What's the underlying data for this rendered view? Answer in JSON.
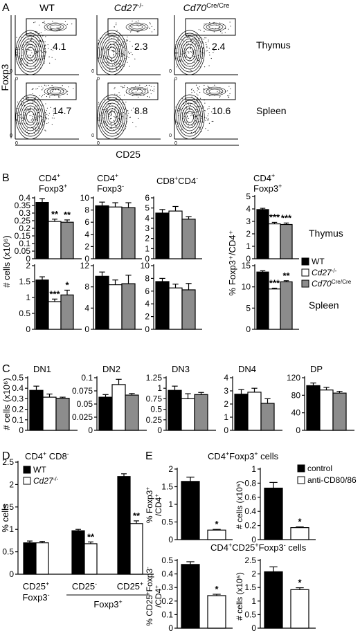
{
  "colors": {
    "wt": "#000000",
    "ko": "#ffffff",
    "cd70": "#8c8c8c",
    "axis": "#000000"
  },
  "panels": {
    "A": "A",
    "B": "B",
    "C": "C",
    "D": "D",
    "E": "E"
  },
  "flow": {
    "columns": [
      {
        "plain": "WT",
        "italic": "",
        "sup": ""
      },
      {
        "plain": "",
        "italic": "Cd27",
        "sup": "-/-"
      },
      {
        "plain": "",
        "italic": "Cd70",
        "sup": "Cre/Cre"
      }
    ],
    "rows": [
      "Thymus",
      "Spleen"
    ],
    "values": [
      [
        "4.1",
        "2.3",
        "2.4"
      ],
      [
        "14.7",
        "8.8",
        "10.6"
      ]
    ],
    "ylabel": "Foxp3",
    "xlabel": "CD25",
    "tick_zero": "0"
  },
  "legend_b": [
    {
      "text": "WT",
      "italic": false,
      "sup": "",
      "color": "#000000"
    },
    {
      "text": "Cd27",
      "italic": true,
      "sup": "-/-",
      "color": "#ffffff"
    },
    {
      "text": "Cd70",
      "italic": true,
      "sup": "Cre/Cre",
      "color": "#8c8c8c"
    }
  ],
  "legend_d": [
    {
      "text": "WT",
      "italic": false,
      "sup": "",
      "color": "#000000"
    },
    {
      "text": "Cd27",
      "italic": true,
      "sup": "-/-",
      "color": "#ffffff"
    }
  ],
  "legend_e": [
    {
      "text": "control",
      "italic": false,
      "sup": "",
      "color": "#000000"
    },
    {
      "text": "anti-CD80/86",
      "italic": false,
      "sup": "",
      "color": "#ffffff"
    }
  ],
  "b_labels": {
    "tregs": [
      "CD4+",
      "Foxp3+"
    ],
    "conv": [
      "CD4+",
      "Foxp3-"
    ],
    "cd8": "CD8+CD4-",
    "pct": [
      "CD4+",
      "Foxp3+"
    ],
    "ylabel_left": "# cells (x10⁶)",
    "ylabel_right": "% Foxp3⁺/CD4⁺",
    "thymus": "Thymus",
    "spleen": "Spleen"
  },
  "c_labels": {
    "ylabel": "# cells (x10⁶)"
  },
  "d_labels": {
    "title": "CD4+ CD8-",
    "ylabel": "% cells",
    "groups": [
      [
        "CD25+",
        "Foxp3-"
      ],
      [
        "CD25-",
        ""
      ],
      [
        "CD25+",
        ""
      ]
    ],
    "bracket": "Foxp3+"
  },
  "e_labels": {
    "title_top": "CD4+Foxp3+ cells",
    "title_bottom": "CD4+CD25+Foxp3- cells",
    "ylabel_1": [
      "% Foxp3+",
      "/CD4+"
    ],
    "ylabel_2": "# cells (x10⁵)",
    "ylabel_3": [
      "% CD25+Foxp3-",
      "/CD4+"
    ],
    "ylabel_4": "# cells (x10⁵)"
  },
  "chart_data": [
    {
      "id": "B-thymus-tregs",
      "type": "bar",
      "ylim": [
        0,
        0.4
      ],
      "ticks": [
        "0",
        "0.05",
        "0.1",
        "0.15",
        "0.2",
        "0.25",
        "0.3",
        "0.35",
        "0.4"
      ],
      "tickvals": [
        0,
        0.05,
        0.1,
        0.15,
        0.2,
        0.25,
        0.3,
        0.35,
        0.4
      ],
      "values": [
        0.37,
        0.245,
        0.24
      ],
      "errors": [
        0.025,
        0.015,
        0.015
      ],
      "sig": [
        "",
        "**",
        "**"
      ]
    },
    {
      "id": "B-thymus-conv",
      "type": "bar",
      "ylim": [
        0,
        10
      ],
      "ticks": [
        "0",
        "2",
        "4",
        "6",
        "8",
        "10"
      ],
      "tickvals": [
        0,
        2,
        4,
        6,
        8,
        10
      ],
      "values": [
        8.7,
        8.5,
        8.4
      ],
      "errors": [
        0.6,
        0.7,
        0.8
      ],
      "sig": [
        "",
        "",
        ""
      ]
    },
    {
      "id": "B-thymus-cd8",
      "type": "bar",
      "ylim": [
        0,
        6
      ],
      "ticks": [
        "0",
        "1",
        "2",
        "3",
        "4",
        "5",
        "6"
      ],
      "tickvals": [
        0,
        1,
        2,
        3,
        4,
        5,
        6
      ],
      "values": [
        4.5,
        4.7,
        3.9
      ],
      "errors": [
        0.35,
        0.45,
        0.25
      ],
      "sig": [
        "",
        "",
        ""
      ]
    },
    {
      "id": "B-thymus-pct",
      "type": "bar",
      "ylim": [
        0,
        5
      ],
      "ticks": [
        "0",
        "1",
        "2",
        "3",
        "4",
        "5"
      ],
      "tickvals": [
        0,
        1,
        2,
        3,
        4,
        5
      ],
      "values": [
        3.95,
        2.8,
        2.75
      ],
      "errors": [
        0.1,
        0.12,
        0.12
      ],
      "sig": [
        "",
        "***",
        "***"
      ]
    },
    {
      "id": "B-spleen-tregs",
      "type": "bar",
      "ylim": [
        0,
        2
      ],
      "ticks": [
        "0",
        "0.5",
        "1",
        "1.5",
        "2"
      ],
      "tickvals": [
        0,
        0.5,
        1,
        1.5,
        2
      ],
      "values": [
        1.55,
        0.87,
        1.08
      ],
      "errors": [
        0.1,
        0.08,
        0.15
      ],
      "sig": [
        "",
        "***",
        "*"
      ]
    },
    {
      "id": "B-spleen-conv",
      "type": "bar",
      "ylim": [
        0,
        12
      ],
      "ticks": [
        "0",
        "4",
        "8",
        "12"
      ],
      "tickvals": [
        0,
        4,
        8,
        12
      ],
      "values": [
        10.0,
        8.4,
        8.6
      ],
      "errors": [
        0.8,
        0.9,
        1.6
      ],
      "sig": [
        "",
        "",
        ""
      ]
    },
    {
      "id": "B-spleen-cd8",
      "type": "bar",
      "ylim": [
        0,
        10
      ],
      "ticks": [
        "0",
        "2",
        "4",
        "6",
        "8",
        "10"
      ],
      "tickvals": [
        0,
        2,
        4,
        6,
        8,
        10
      ],
      "values": [
        7.5,
        6.5,
        6.2
      ],
      "errors": [
        0.5,
        0.6,
        1.0
      ],
      "sig": [
        "",
        "",
        ""
      ]
    },
    {
      "id": "B-spleen-pct",
      "type": "bar",
      "ylim": [
        0,
        15
      ],
      "ticks": [
        "0",
        "5",
        "10",
        "15"
      ],
      "tickvals": [
        0,
        5,
        10,
        15
      ],
      "values": [
        13.5,
        9.5,
        11.2
      ],
      "errors": [
        0.3,
        0.2,
        0.25
      ],
      "sig": [
        "",
        "***",
        "**"
      ]
    },
    {
      "id": "C-DN1",
      "type": "bar",
      "title": "DN1",
      "ylim": [
        0,
        0.5
      ],
      "ticks": [
        "0",
        "0.1",
        "0.2",
        "0.3",
        "0.4",
        "0.5"
      ],
      "tickvals": [
        0,
        0.1,
        0.2,
        0.3,
        0.4,
        0.5
      ],
      "values": [
        0.38,
        0.315,
        0.305
      ],
      "errors": [
        0.04,
        0.03,
        0.01
      ],
      "sig": [
        "",
        "",
        ""
      ]
    },
    {
      "id": "C-DN2",
      "type": "bar",
      "title": "DN2",
      "ylim": [
        0,
        0.1
      ],
      "ticks": [
        "0",
        "0.025",
        "0.05",
        "0.075",
        "0.1"
      ],
      "tickvals": [
        0,
        0.025,
        0.05,
        0.075,
        0.1
      ],
      "values": [
        0.063,
        0.087,
        0.067
      ],
      "errors": [
        0.005,
        0.01,
        0.003
      ],
      "sig": [
        "",
        "",
        ""
      ]
    },
    {
      "id": "C-DN3",
      "type": "bar",
      "title": "DN3",
      "ylim": [
        0,
        1.25
      ],
      "ticks": [
        "0",
        "0.25",
        "0.5",
        "0.75",
        "1",
        "1.25"
      ],
      "tickvals": [
        0,
        0.25,
        0.5,
        0.75,
        1,
        1.25
      ],
      "values": [
        0.95,
        0.75,
        0.85
      ],
      "errors": [
        0.1,
        0.12,
        0.05
      ],
      "sig": [
        "",
        "",
        ""
      ]
    },
    {
      "id": "C-DN4",
      "type": "bar",
      "title": "DN4",
      "ylim": [
        0,
        4
      ],
      "ticks": [
        "0",
        "1",
        "2",
        "3",
        "4"
      ],
      "tickvals": [
        0,
        1,
        2,
        3,
        4
      ],
      "values": [
        2.75,
        2.9,
        2.05
      ],
      "errors": [
        0.35,
        0.3,
        0.35
      ],
      "sig": [
        "",
        "",
        ""
      ]
    },
    {
      "id": "C-DP",
      "type": "bar",
      "title": "DP",
      "ylim": [
        0,
        120
      ],
      "ticks": [
        "0",
        "40",
        "80",
        "120"
      ],
      "tickvals": [
        0,
        40,
        80,
        120
      ],
      "values": [
        102,
        92,
        85
      ],
      "errors": [
        6,
        6,
        4
      ],
      "sig": [
        "",
        "",
        ""
      ]
    },
    {
      "id": "D",
      "type": "bar",
      "ylim": [
        0,
        2.5
      ],
      "ticks": [
        "0",
        "0.5",
        "1",
        "1.5",
        "2",
        "2.5"
      ],
      "tickvals": [
        0,
        0.5,
        1,
        1.5,
        2,
        2.5
      ],
      "groups": [
        {
          "values": [
            0.7,
            0.7
          ],
          "errors": [
            0.04,
            0.03
          ],
          "sig": [
            "",
            ""
          ]
        },
        {
          "values": [
            0.97,
            0.68
          ],
          "errors": [
            0.03,
            0.04
          ],
          "sig": [
            "",
            "**"
          ]
        },
        {
          "values": [
            2.18,
            1.13
          ],
          "errors": [
            0.06,
            0.06
          ],
          "sig": [
            "",
            "**"
          ]
        }
      ]
    },
    {
      "id": "E-1",
      "type": "bar",
      "ylim": [
        0,
        2
      ],
      "ticks": [
        "0",
        "0.5",
        "1",
        "1.5",
        "2"
      ],
      "tickvals": [
        0,
        0.5,
        1,
        1.5,
        2
      ],
      "values": [
        1.65,
        0.27
      ],
      "errors": [
        0.12,
        0.02
      ],
      "sig": [
        "",
        "*"
      ]
    },
    {
      "id": "E-2",
      "type": "bar",
      "ylim": [
        0,
        1
      ],
      "ticks": [
        "0",
        "0.2",
        "0.4",
        "0.6",
        "0.8",
        "1"
      ],
      "tickvals": [
        0,
        0.2,
        0.4,
        0.6,
        0.8,
        1
      ],
      "values": [
        0.73,
        0.17
      ],
      "errors": [
        0.08,
        0.01
      ],
      "sig": [
        "",
        "*"
      ]
    },
    {
      "id": "E-3",
      "type": "bar",
      "ylim": [
        0,
        0.5
      ],
      "ticks": [
        "0",
        "0.1",
        "0.2",
        "0.3",
        "0.4",
        "0.5"
      ],
      "tickvals": [
        0,
        0.1,
        0.2,
        0.3,
        0.4,
        0.5
      ],
      "values": [
        0.47,
        0.24
      ],
      "errors": [
        0.02,
        0.01
      ],
      "sig": [
        "",
        "*"
      ]
    },
    {
      "id": "E-4",
      "type": "bar",
      "ylim": [
        0,
        2.5
      ],
      "ticks": [
        "0",
        "0.5",
        "1",
        "1.5",
        "2",
        "2.5"
      ],
      "tickvals": [
        0,
        0.5,
        1,
        1.5,
        2,
        2.5
      ],
      "values": [
        2.08,
        1.42
      ],
      "errors": [
        0.18,
        0.07
      ],
      "sig": [
        "",
        "*"
      ]
    }
  ]
}
